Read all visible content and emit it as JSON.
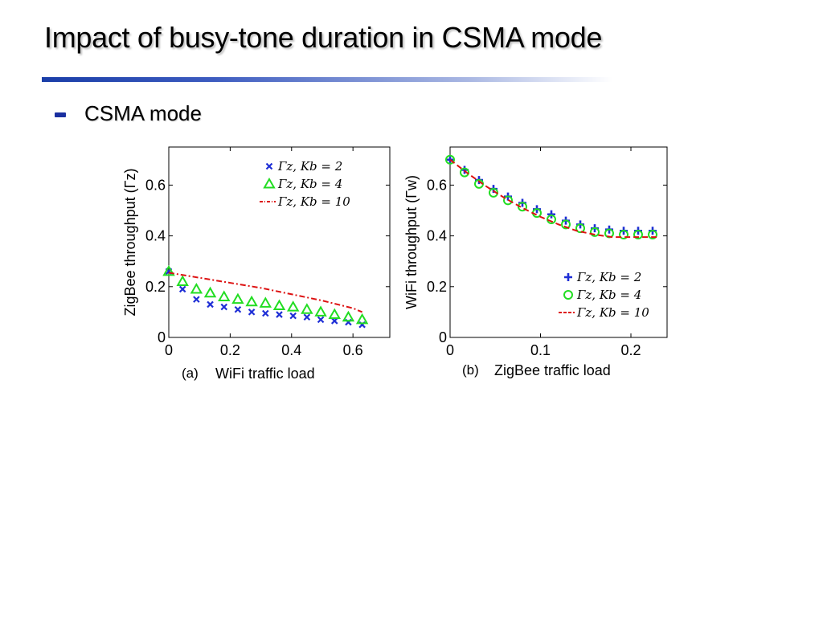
{
  "slide": {
    "title": "Impact of busy-tone duration in CSMA mode",
    "bullet": "CSMA mode"
  },
  "colors": {
    "title_rule": "#1a3ea8",
    "bullet": "#1a2fa0",
    "series_blue": "#1f2fd6",
    "series_green": "#22dd22",
    "series_red": "#dd1111"
  },
  "chart_data": [
    {
      "type": "scatter",
      "panel_label": "(a)",
      "xlabel": "WiFi traffic load",
      "ylabel": "ZigBee throughput (Γz)",
      "xlim": [
        0,
        0.72
      ],
      "ylim": [
        0,
        0.75
      ],
      "xticks": [
        "0",
        "0.2",
        "0.4",
        "0.6"
      ],
      "xtick_values": [
        0,
        0.2,
        0.4,
        0.6
      ],
      "yticks": [
        "0",
        "0.2",
        "0.4",
        "0.6"
      ],
      "ytick_values": [
        0,
        0.2,
        0.4,
        0.6
      ],
      "grid": false,
      "legend_position": "top-right",
      "series": [
        {
          "name": "Γz, Kb = 2",
          "marker": "x",
          "color": "#1f2fd6",
          "x": [
            0,
            0.045,
            0.09,
            0.135,
            0.18,
            0.225,
            0.27,
            0.315,
            0.36,
            0.405,
            0.45,
            0.495,
            0.54,
            0.585,
            0.63
          ],
          "y": [
            0.26,
            0.19,
            0.15,
            0.13,
            0.12,
            0.11,
            0.1,
            0.095,
            0.09,
            0.085,
            0.08,
            0.07,
            0.065,
            0.06,
            0.05
          ]
        },
        {
          "name": "Γz, Kb = 4",
          "marker": "triangle",
          "color": "#22dd22",
          "x": [
            0,
            0.045,
            0.09,
            0.135,
            0.18,
            0.225,
            0.27,
            0.315,
            0.36,
            0.405,
            0.45,
            0.495,
            0.54,
            0.585,
            0.63
          ],
          "y": [
            0.26,
            0.22,
            0.19,
            0.175,
            0.16,
            0.15,
            0.14,
            0.135,
            0.125,
            0.12,
            0.11,
            0.1,
            0.09,
            0.08,
            0.07
          ]
        },
        {
          "name": "Γz, Kb = 10",
          "marker": "dash-dot",
          "color": "#dd1111",
          "x": [
            0,
            0.1,
            0.2,
            0.3,
            0.4,
            0.5,
            0.6,
            0.63
          ],
          "y": [
            0.255,
            0.235,
            0.215,
            0.195,
            0.17,
            0.145,
            0.115,
            0.1
          ]
        }
      ]
    },
    {
      "type": "scatter",
      "panel_label": "(b)",
      "xlabel": "ZigBee traffic load",
      "ylabel": "WiFi throughput (Γw)",
      "xlim": [
        0,
        0.24
      ],
      "ylim": [
        0,
        0.75
      ],
      "xticks": [
        "0",
        "0.1",
        "0.2"
      ],
      "xtick_values": [
        0,
        0.1,
        0.2
      ],
      "yticks": [
        "0",
        "0.2",
        "0.4",
        "0.6"
      ],
      "ytick_values": [
        0,
        0.2,
        0.4,
        0.6
      ],
      "grid": false,
      "legend_position": "bottom-right",
      "series": [
        {
          "name": "Γz, Kb = 2",
          "marker": "plus",
          "color": "#1f2fd6",
          "x": [
            0,
            0.016,
            0.032,
            0.048,
            0.064,
            0.08,
            0.096,
            0.112,
            0.128,
            0.144,
            0.16,
            0.176,
            0.192,
            0.208,
            0.224
          ],
          "y": [
            0.7,
            0.66,
            0.62,
            0.585,
            0.555,
            0.53,
            0.505,
            0.485,
            0.46,
            0.445,
            0.43,
            0.425,
            0.42,
            0.42,
            0.42
          ]
        },
        {
          "name": "Γz, Kb = 4",
          "marker": "circle",
          "color": "#22dd22",
          "x": [
            0,
            0.016,
            0.032,
            0.048,
            0.064,
            0.08,
            0.096,
            0.112,
            0.128,
            0.144,
            0.16,
            0.176,
            0.192,
            0.208,
            0.224
          ],
          "y": [
            0.7,
            0.65,
            0.605,
            0.57,
            0.54,
            0.515,
            0.49,
            0.465,
            0.445,
            0.43,
            0.415,
            0.41,
            0.405,
            0.405,
            0.405
          ]
        },
        {
          "name": "Γz, Kb = 10",
          "marker": "dashed",
          "color": "#dd1111",
          "x": [
            0,
            0.02,
            0.04,
            0.06,
            0.08,
            0.1,
            0.12,
            0.14,
            0.16,
            0.18,
            0.2,
            0.23
          ],
          "y": [
            0.7,
            0.645,
            0.595,
            0.55,
            0.51,
            0.475,
            0.445,
            0.42,
            0.405,
            0.395,
            0.395,
            0.395
          ]
        }
      ]
    }
  ]
}
